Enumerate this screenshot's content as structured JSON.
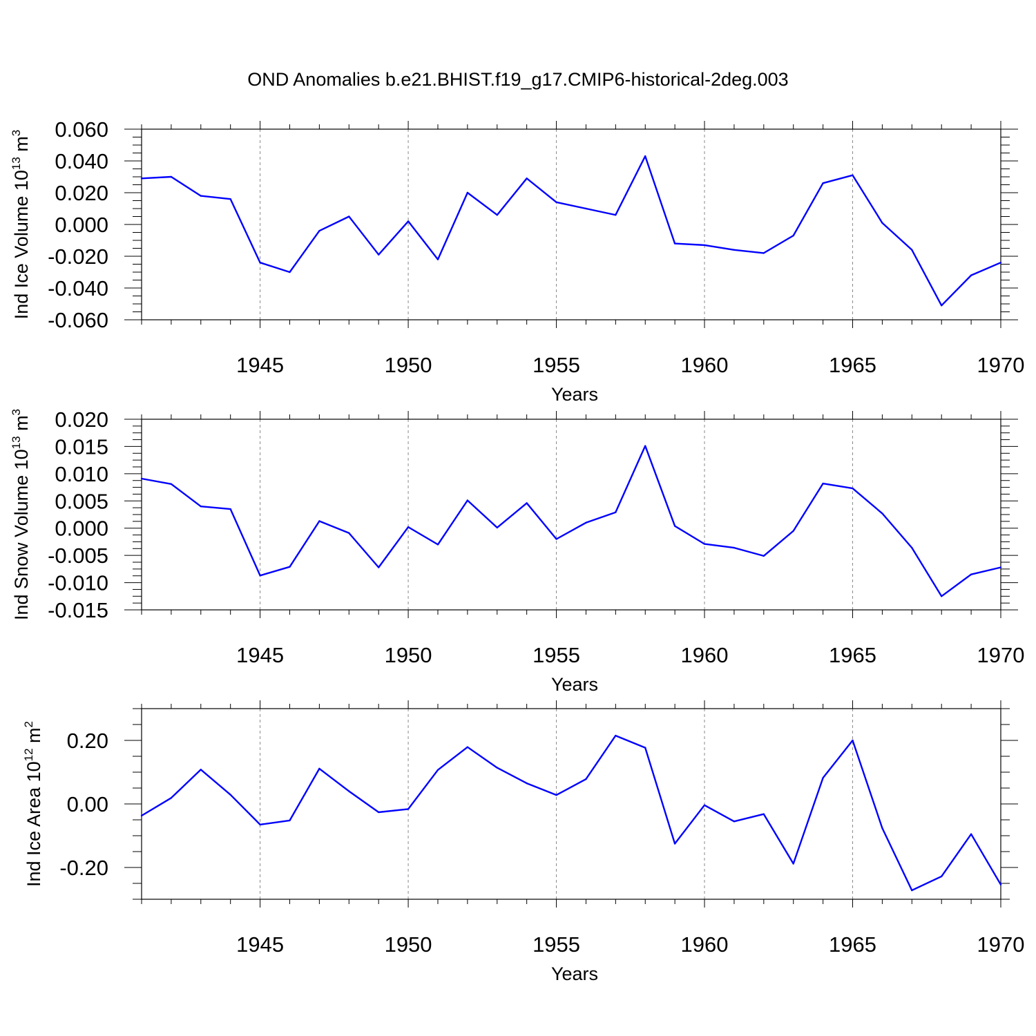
{
  "figure_title": "OND Anomalies b.e21.BHIST.f19_g17.CMIP6-historical-2deg.003",
  "colors": {
    "series": "#0000ff",
    "axes": "#000000",
    "grid": "#888888"
  },
  "chart_data": [
    {
      "type": "line",
      "xlabel": "Years",
      "ylabel": {
        "text": "Ind Ice Volume 10",
        "exponent": "13",
        "unit": " m",
        "unit_exponent": "3"
      },
      "xlim": [
        1941,
        1970
      ],
      "ylim": [
        -0.06,
        0.06
      ],
      "x_ticks": [
        1945,
        1950,
        1955,
        1960,
        1965,
        1970
      ],
      "y_ticks": [
        "0.060",
        "0.040",
        "0.020",
        "0.000",
        "-0.020",
        "-0.040",
        "-0.060"
      ],
      "grid": "vertical dashed at major x ticks",
      "x": [
        1941,
        1942,
        1943,
        1944,
        1945,
        1946,
        1947,
        1948,
        1949,
        1950,
        1951,
        1952,
        1953,
        1954,
        1955,
        1956,
        1957,
        1958,
        1959,
        1960,
        1961,
        1962,
        1963,
        1964,
        1965,
        1966,
        1967,
        1968,
        1969,
        1970
      ],
      "values": [
        0.029,
        0.03,
        0.018,
        0.016,
        -0.024,
        -0.03,
        -0.004,
        0.005,
        -0.019,
        0.002,
        -0.022,
        0.02,
        0.006,
        0.029,
        0.014,
        0.01,
        0.006,
        0.043,
        -0.012,
        -0.013,
        -0.016,
        -0.018,
        -0.007,
        0.026,
        0.031,
        0.001,
        -0.016,
        -0.051,
        -0.032,
        -0.024
      ]
    },
    {
      "type": "line",
      "xlabel": "Years",
      "ylabel": {
        "text": "Ind Snow Volume 10",
        "exponent": "13",
        "unit": " m",
        "unit_exponent": "3"
      },
      "xlim": [
        1941,
        1970
      ],
      "ylim": [
        -0.015,
        0.02
      ],
      "x_ticks": [
        1945,
        1950,
        1955,
        1960,
        1965,
        1970
      ],
      "y_ticks": [
        "0.020",
        "0.015",
        "0.010",
        "0.005",
        "0.000",
        "-0.005",
        "-0.010",
        "-0.015"
      ],
      "grid": "vertical dashed at major x ticks",
      "x": [
        1941,
        1942,
        1943,
        1944,
        1945,
        1946,
        1947,
        1948,
        1949,
        1950,
        1951,
        1952,
        1953,
        1954,
        1955,
        1956,
        1957,
        1958,
        1959,
        1960,
        1961,
        1962,
        1963,
        1964,
        1965,
        1966,
        1967,
        1968,
        1969,
        1970
      ],
      "values": [
        0.0091,
        0.0081,
        0.004,
        0.0035,
        -0.0087,
        -0.0071,
        0.0013,
        -0.0009,
        -0.0072,
        0.0002,
        -0.003,
        0.0051,
        0.0001,
        0.0046,
        -0.002,
        0.001,
        0.0029,
        0.0151,
        0.0004,
        -0.0029,
        -0.0036,
        -0.0051,
        -0.0005,
        0.0082,
        0.0073,
        0.0027,
        -0.0036,
        -0.0125,
        -0.0085,
        -0.0072
      ]
    },
    {
      "type": "line",
      "xlabel": "Years",
      "ylabel": {
        "text": "Ind Ice Area 10",
        "exponent": "12",
        "unit": " m",
        "unit_exponent": "2"
      },
      "xlim": [
        1941,
        1970
      ],
      "ylim": [
        -0.3,
        0.3
      ],
      "x_ticks": [
        1945,
        1950,
        1955,
        1960,
        1965,
        1970
      ],
      "y_ticks": [
        "0.20",
        "0.00",
        "-0.20"
      ],
      "y_tick_values": [
        0.2,
        0.0,
        -0.2
      ],
      "grid": "vertical dashed at major x ticks",
      "x": [
        1941,
        1942,
        1943,
        1944,
        1945,
        1946,
        1947,
        1948,
        1949,
        1950,
        1951,
        1952,
        1953,
        1954,
        1955,
        1956,
        1957,
        1958,
        1959,
        1960,
        1961,
        1962,
        1963,
        1964,
        1965,
        1966,
        1967,
        1968,
        1969,
        1970
      ],
      "values": [
        -0.037,
        0.019,
        0.108,
        0.029,
        -0.065,
        -0.052,
        0.111,
        0.04,
        -0.026,
        -0.016,
        0.107,
        0.179,
        0.114,
        0.065,
        0.028,
        0.078,
        0.215,
        0.177,
        -0.125,
        -0.004,
        -0.055,
        -0.032,
        -0.188,
        0.082,
        0.2,
        -0.076,
        -0.272,
        -0.228,
        -0.095,
        -0.254
      ]
    }
  ]
}
